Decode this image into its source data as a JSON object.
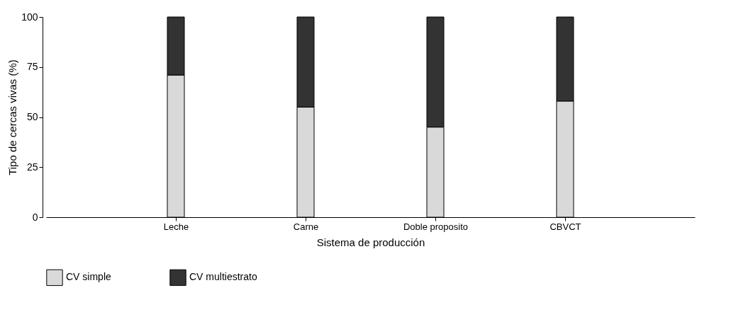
{
  "chart_data": {
    "type": "bar",
    "stacked": true,
    "xlabel": "Sistema de producción",
    "ylabel": "Tipo de cercas vivas (%)",
    "categories": [
      "Leche",
      "Carne",
      "Doble proposito",
      "CBVCT"
    ],
    "series": [
      {
        "name": "CV simple",
        "color": "#d9d9d9",
        "values": [
          71,
          55,
          45,
          58
        ]
      },
      {
        "name": "CV multiestrato",
        "color": "#333333",
        "values": [
          29,
          45,
          55,
          42
        ]
      }
    ],
    "ylim": [
      0,
      100
    ],
    "yticks": [
      0,
      25,
      50,
      75,
      100
    ],
    "grid": false,
    "legend": "bottom"
  }
}
